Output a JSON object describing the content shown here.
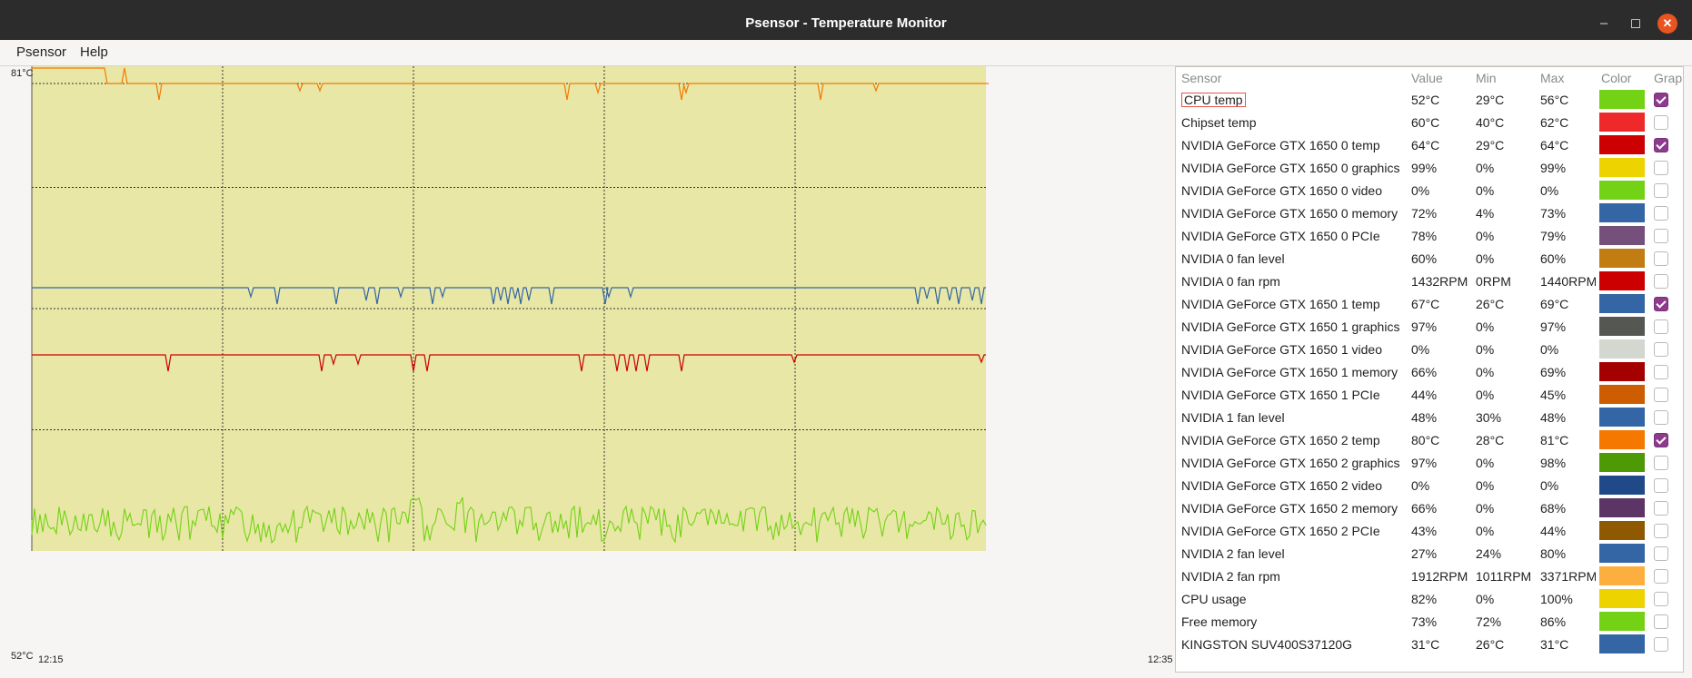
{
  "window": {
    "title": "Psensor - Temperature Monitor"
  },
  "menu": {
    "items": [
      "Psensor",
      "Help"
    ]
  },
  "graph": {
    "y_max_label": "81°C",
    "y_min_label": "52°C",
    "x_start_label": "12:15",
    "x_end_label": "12:35",
    "background": "#e8e7a5"
  },
  "table": {
    "columns": [
      "Sensor",
      "Value",
      "Min",
      "Max",
      "Color",
      "Graph"
    ],
    "rows": [
      {
        "name": "CPU temp",
        "value": "52°C",
        "min": "29°C",
        "max": "56°C",
        "color": "#73d216",
        "graph": true
      },
      {
        "name": "Chipset temp",
        "value": "60°C",
        "min": "40°C",
        "max": "62°C",
        "color": "#ef2929",
        "graph": false
      },
      {
        "name": "NVIDIA GeForce GTX 1650 0 temp",
        "value": "64°C",
        "min": "29°C",
        "max": "64°C",
        "color": "#cc0000",
        "graph": true
      },
      {
        "name": "NVIDIA GeForce GTX 1650 0 graphics",
        "value": "99%",
        "min": "0%",
        "max": "99%",
        "color": "#edd400",
        "graph": false
      },
      {
        "name": "NVIDIA GeForce GTX 1650 0 video",
        "value": "0%",
        "min": "0%",
        "max": "0%",
        "color": "#73d216",
        "graph": false
      },
      {
        "name": "NVIDIA GeForce GTX 1650 0 memory",
        "value": "72%",
        "min": "4%",
        "max": "73%",
        "color": "#3465a4",
        "graph": false
      },
      {
        "name": "NVIDIA GeForce GTX 1650 0 PCIe",
        "value": "78%",
        "min": "0%",
        "max": "79%",
        "color": "#75507b",
        "graph": false
      },
      {
        "name": "NVIDIA 0 fan level",
        "value": "60%",
        "min": "0%",
        "max": "60%",
        "color": "#c17d11",
        "graph": false
      },
      {
        "name": "NVIDIA 0 fan rpm",
        "value": "1432RPM",
        "min": "0RPM",
        "max": "1440RPM",
        "color": "#cc0000",
        "graph": false
      },
      {
        "name": "NVIDIA GeForce GTX 1650 1 temp",
        "value": "67°C",
        "min": "26°C",
        "max": "69°C",
        "color": "#3465a4",
        "graph": true
      },
      {
        "name": "NVIDIA GeForce GTX 1650 1 graphics",
        "value": "97%",
        "min": "0%",
        "max": "97%",
        "color": "#555753",
        "graph": false
      },
      {
        "name": "NVIDIA GeForce GTX 1650 1 video",
        "value": "0%",
        "min": "0%",
        "max": "0%",
        "color": "#d3d7cf",
        "graph": false
      },
      {
        "name": "NVIDIA GeForce GTX 1650 1 memory",
        "value": "66%",
        "min": "0%",
        "max": "69%",
        "color": "#a40000",
        "graph": false
      },
      {
        "name": "NVIDIA GeForce GTX 1650 1 PCIe",
        "value": "44%",
        "min": "0%",
        "max": "45%",
        "color": "#ce5c00",
        "graph": false
      },
      {
        "name": "NVIDIA 1 fan level",
        "value": "48%",
        "min": "30%",
        "max": "48%",
        "color": "#3465a4",
        "graph": false
      },
      {
        "name": "NVIDIA GeForce GTX 1650 2 temp",
        "value": "80°C",
        "min": "28°C",
        "max": "81°C",
        "color": "#f57900",
        "graph": true
      },
      {
        "name": "NVIDIA GeForce GTX 1650 2 graphics",
        "value": "97%",
        "min": "0%",
        "max": "98%",
        "color": "#4e9a06",
        "graph": false
      },
      {
        "name": "NVIDIA GeForce GTX 1650 2 video",
        "value": "0%",
        "min": "0%",
        "max": "0%",
        "color": "#204a87",
        "graph": false
      },
      {
        "name": "NVIDIA GeForce GTX 1650 2 memory",
        "value": "66%",
        "min": "0%",
        "max": "68%",
        "color": "#5c3566",
        "graph": false
      },
      {
        "name": "NVIDIA GeForce GTX 1650 2 PCIe",
        "value": "43%",
        "min": "0%",
        "max": "44%",
        "color": "#8f5902",
        "graph": false
      },
      {
        "name": "NVIDIA 2 fan level",
        "value": "27%",
        "min": "24%",
        "max": "80%",
        "color": "#3465a4",
        "graph": false
      },
      {
        "name": "NVIDIA 2 fan rpm",
        "value": "1912RPM",
        "min": "1011RPM",
        "max": "3371RPM",
        "color": "#fcaf3e",
        "graph": false
      },
      {
        "name": "CPU usage",
        "value": "82%",
        "min": "0%",
        "max": "100%",
        "color": "#edd400",
        "graph": false
      },
      {
        "name": "Free memory",
        "value": "73%",
        "min": "72%",
        "max": "86%",
        "color": "#73d216",
        "graph": false
      },
      {
        "name": "KINGSTON SUV400S37120G",
        "value": "31°C",
        "min": "26°C",
        "max": "31°C",
        "color": "#3465a4",
        "graph": false
      }
    ]
  }
}
